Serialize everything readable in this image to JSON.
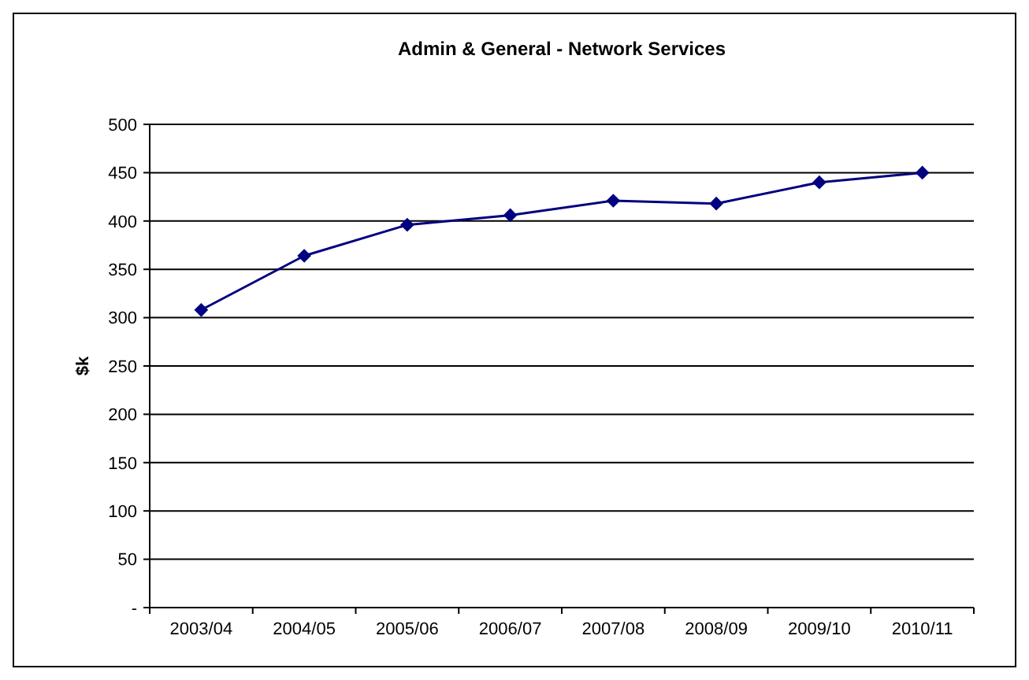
{
  "chart_data": {
    "type": "line",
    "title": "Admin & General - Network Services",
    "ylabel": "$k",
    "categories": [
      "2003/04",
      "2004/05",
      "2005/06",
      "2006/07",
      "2007/08",
      "2008/09",
      "2009/10",
      "2010/11"
    ],
    "series": [
      {
        "color": "#000080",
        "values": [
          308,
          364,
          396,
          406,
          421,
          418,
          440,
          450
        ]
      }
    ],
    "ylim": [
      0,
      500
    ],
    "yticks": [
      {
        "value": 0,
        "label": "-"
      },
      50,
      100,
      150,
      200,
      250,
      300,
      350,
      400,
      450,
      500
    ],
    "grid": "y",
    "marker": "diamond",
    "line_style": "solid"
  }
}
